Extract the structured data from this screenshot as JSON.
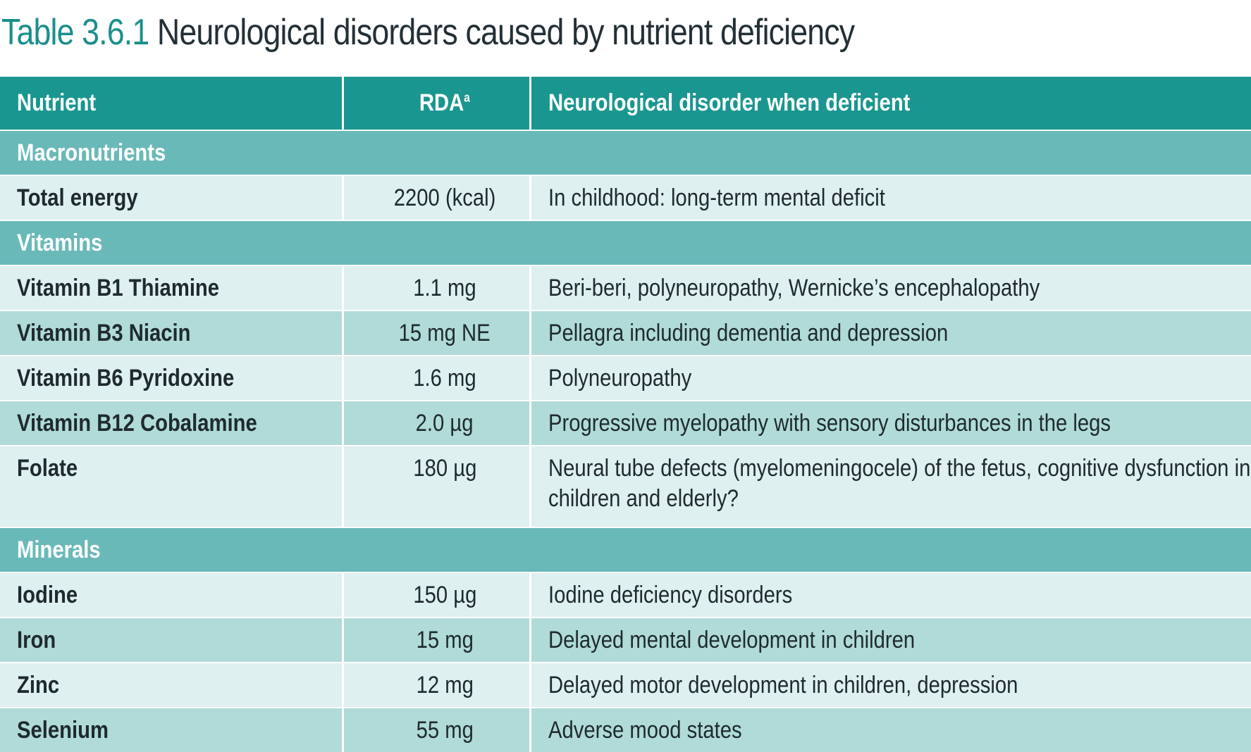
{
  "title": {
    "number": "Table 3.6.1",
    "text": "Neurological disorders caused by nutrient deficiency"
  },
  "table": {
    "headers": {
      "nutrient": "Nutrient",
      "rda": "RDA",
      "rda_sup": "a",
      "disorder": "Neurological disorder when deficient"
    },
    "sections": {
      "macronutrients": "Macronutrients",
      "vitamins": "Vitamins",
      "minerals": "Minerals"
    },
    "rows": {
      "total_energy": {
        "nutrient": "Total energy",
        "rda": "2200 (kcal)",
        "disorder": "In childhood: long-term mental deficit"
      },
      "b1": {
        "nutrient": "Vitamin B1 Thiamine",
        "rda": "1.1 mg",
        "disorder": "Beri-beri, polyneuropathy, Wernicke’s encephalopathy"
      },
      "b3": {
        "nutrient": "Vitamin B3 Niacin",
        "rda": "15 mg NE",
        "disorder": "Pellagra including dementia and depression"
      },
      "b6": {
        "nutrient": "Vitamin B6 Pyridoxine",
        "rda": "1.6 mg",
        "disorder": "Polyneuropathy"
      },
      "b12": {
        "nutrient": "Vitamin B12 Cobalamine",
        "rda": "2.0 µg",
        "disorder": "Progressive myelopathy with sensory disturbances in the legs"
      },
      "folate": {
        "nutrient": "Folate",
        "rda": "180 µg",
        "disorder": "Neural tube defects (myelomeningocele) of the fetus, cognitive dysfunction in children and elderly?"
      },
      "iodine": {
        "nutrient": "Iodine",
        "rda": "150 µg",
        "disorder": "Iodine deficiency disorders"
      },
      "iron": {
        "nutrient": "Iron",
        "rda": "15 mg",
        "disorder": "Delayed mental development in children"
      },
      "zinc": {
        "nutrient": "Zinc",
        "rda": "12 mg",
        "disorder": "Delayed motor development in children, depression"
      },
      "selenium": {
        "nutrient": "Selenium",
        "rda": "55 mg",
        "disorder": "Adverse mood states"
      }
    }
  }
}
